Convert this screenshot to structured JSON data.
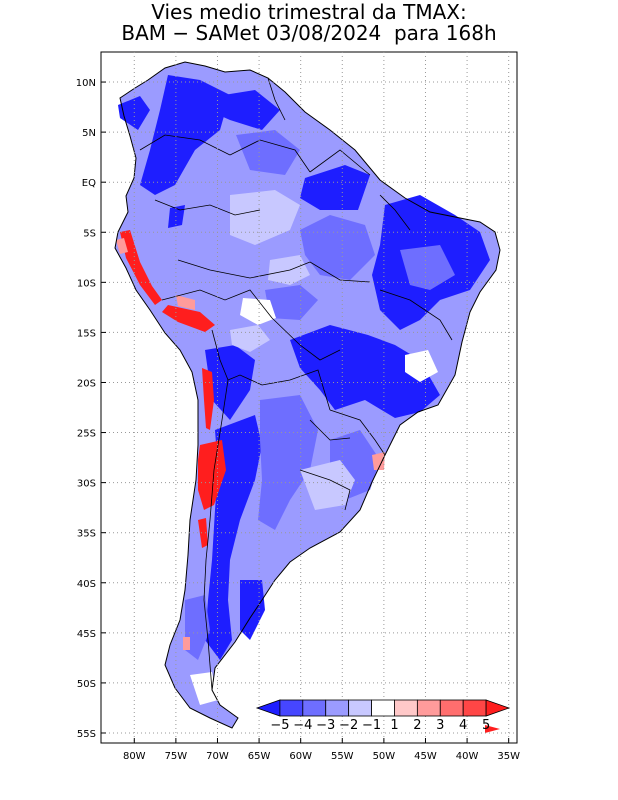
{
  "title": {
    "line1": "Vies medio trimestral da TMAX:",
    "line2": "BAM − SAMet 03/08/2024  para 168h"
  },
  "map": {
    "lon_range": [
      -84,
      -34
    ],
    "lat_range": [
      -56,
      13
    ],
    "grid": true,
    "lon_ticks": [
      {
        "value": -80,
        "label": "80W"
      },
      {
        "value": -75,
        "label": "75W"
      },
      {
        "value": -70,
        "label": "70W"
      },
      {
        "value": -65,
        "label": "65W"
      },
      {
        "value": -60,
        "label": "60W"
      },
      {
        "value": -55,
        "label": "55W"
      },
      {
        "value": -50,
        "label": "50W"
      },
      {
        "value": -45,
        "label": "45W"
      },
      {
        "value": -40,
        "label": "40W"
      },
      {
        "value": -35,
        "label": "35W"
      }
    ],
    "lat_ticks": [
      {
        "value": 10,
        "label": "10N"
      },
      {
        "value": 5,
        "label": "5N"
      },
      {
        "value": 0,
        "label": "EQ"
      },
      {
        "value": -5,
        "label": "5S"
      },
      {
        "value": -10,
        "label": "10S"
      },
      {
        "value": -15,
        "label": "15S"
      },
      {
        "value": -20,
        "label": "20S"
      },
      {
        "value": -25,
        "label": "25S"
      },
      {
        "value": -30,
        "label": "30S"
      },
      {
        "value": -35,
        "label": "35S"
      },
      {
        "value": -40,
        "label": "40S"
      },
      {
        "value": -45,
        "label": "45S"
      },
      {
        "value": -50,
        "label": "50S"
      },
      {
        "value": -55,
        "label": "55S"
      }
    ]
  },
  "colorbar": {
    "labels": [
      "−5",
      "−4",
      "−3",
      "−2",
      "−1",
      "1",
      "2",
      "3",
      "4",
      "5"
    ],
    "colors": [
      "#1e1eff",
      "#4646ff",
      "#6e6eff",
      "#9b9bff",
      "#c8c8ff",
      "#ffffff",
      "#ffc8c8",
      "#ff9b9b",
      "#ff6e6e",
      "#ff4646",
      "#ff1e1e"
    ]
  }
}
